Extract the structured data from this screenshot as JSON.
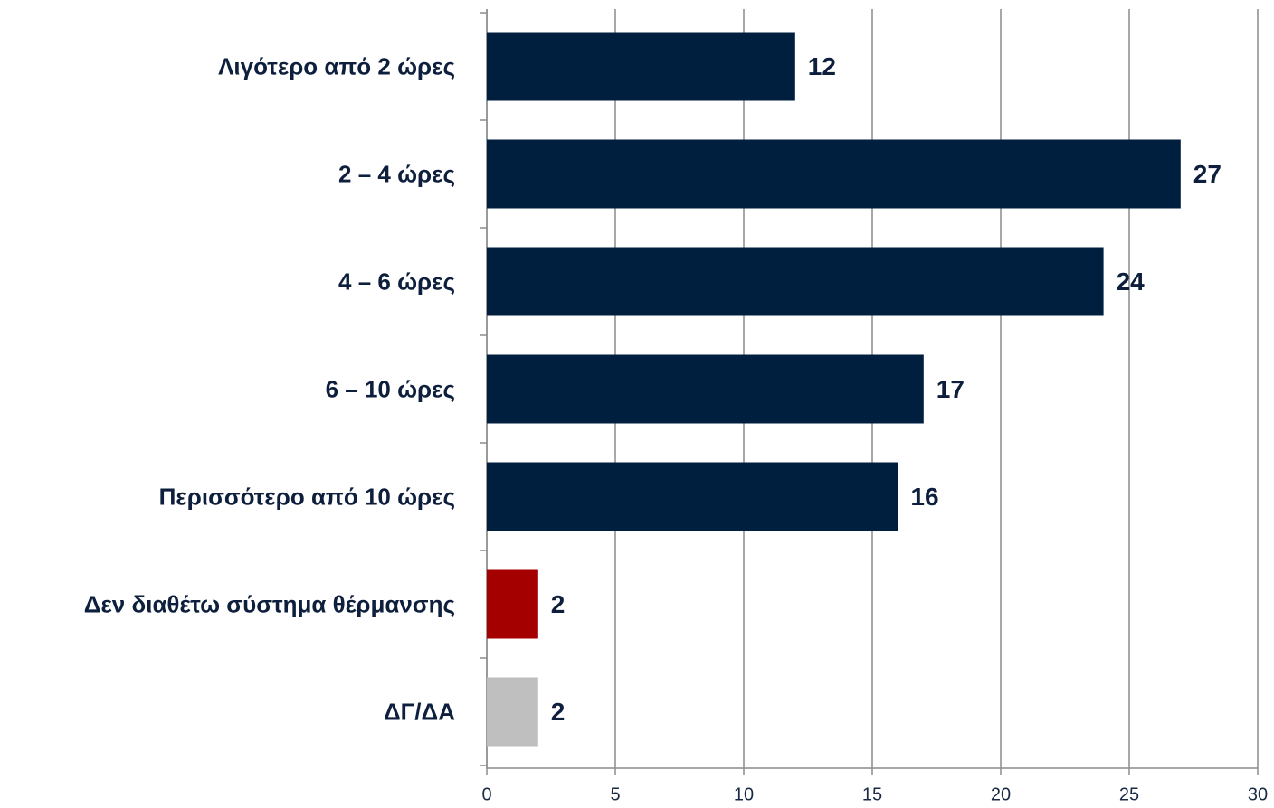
{
  "chart_data": {
    "type": "bar",
    "orientation": "horizontal",
    "categories": [
      "Λιγότερο από 2 ώρες",
      "2 – 4 ώρες",
      "4 – 6 ώρες",
      "6 – 10 ώρες",
      "Περισσότερο από 10 ώρες",
      "Δεν διαθέτω σύστημα θέρμανσης",
      "ΔΓ/ΔΑ"
    ],
    "values": [
      12,
      27,
      24,
      17,
      16,
      2,
      2
    ],
    "colors": [
      "#001f3f",
      "#001f3f",
      "#001f3f",
      "#001f3f",
      "#001f3f",
      "#a50000",
      "#bfbfbf"
    ],
    "xlim": [
      0,
      30
    ],
    "xticks": [
      0,
      5,
      10,
      15,
      20,
      25,
      30
    ],
    "grid": true
  }
}
